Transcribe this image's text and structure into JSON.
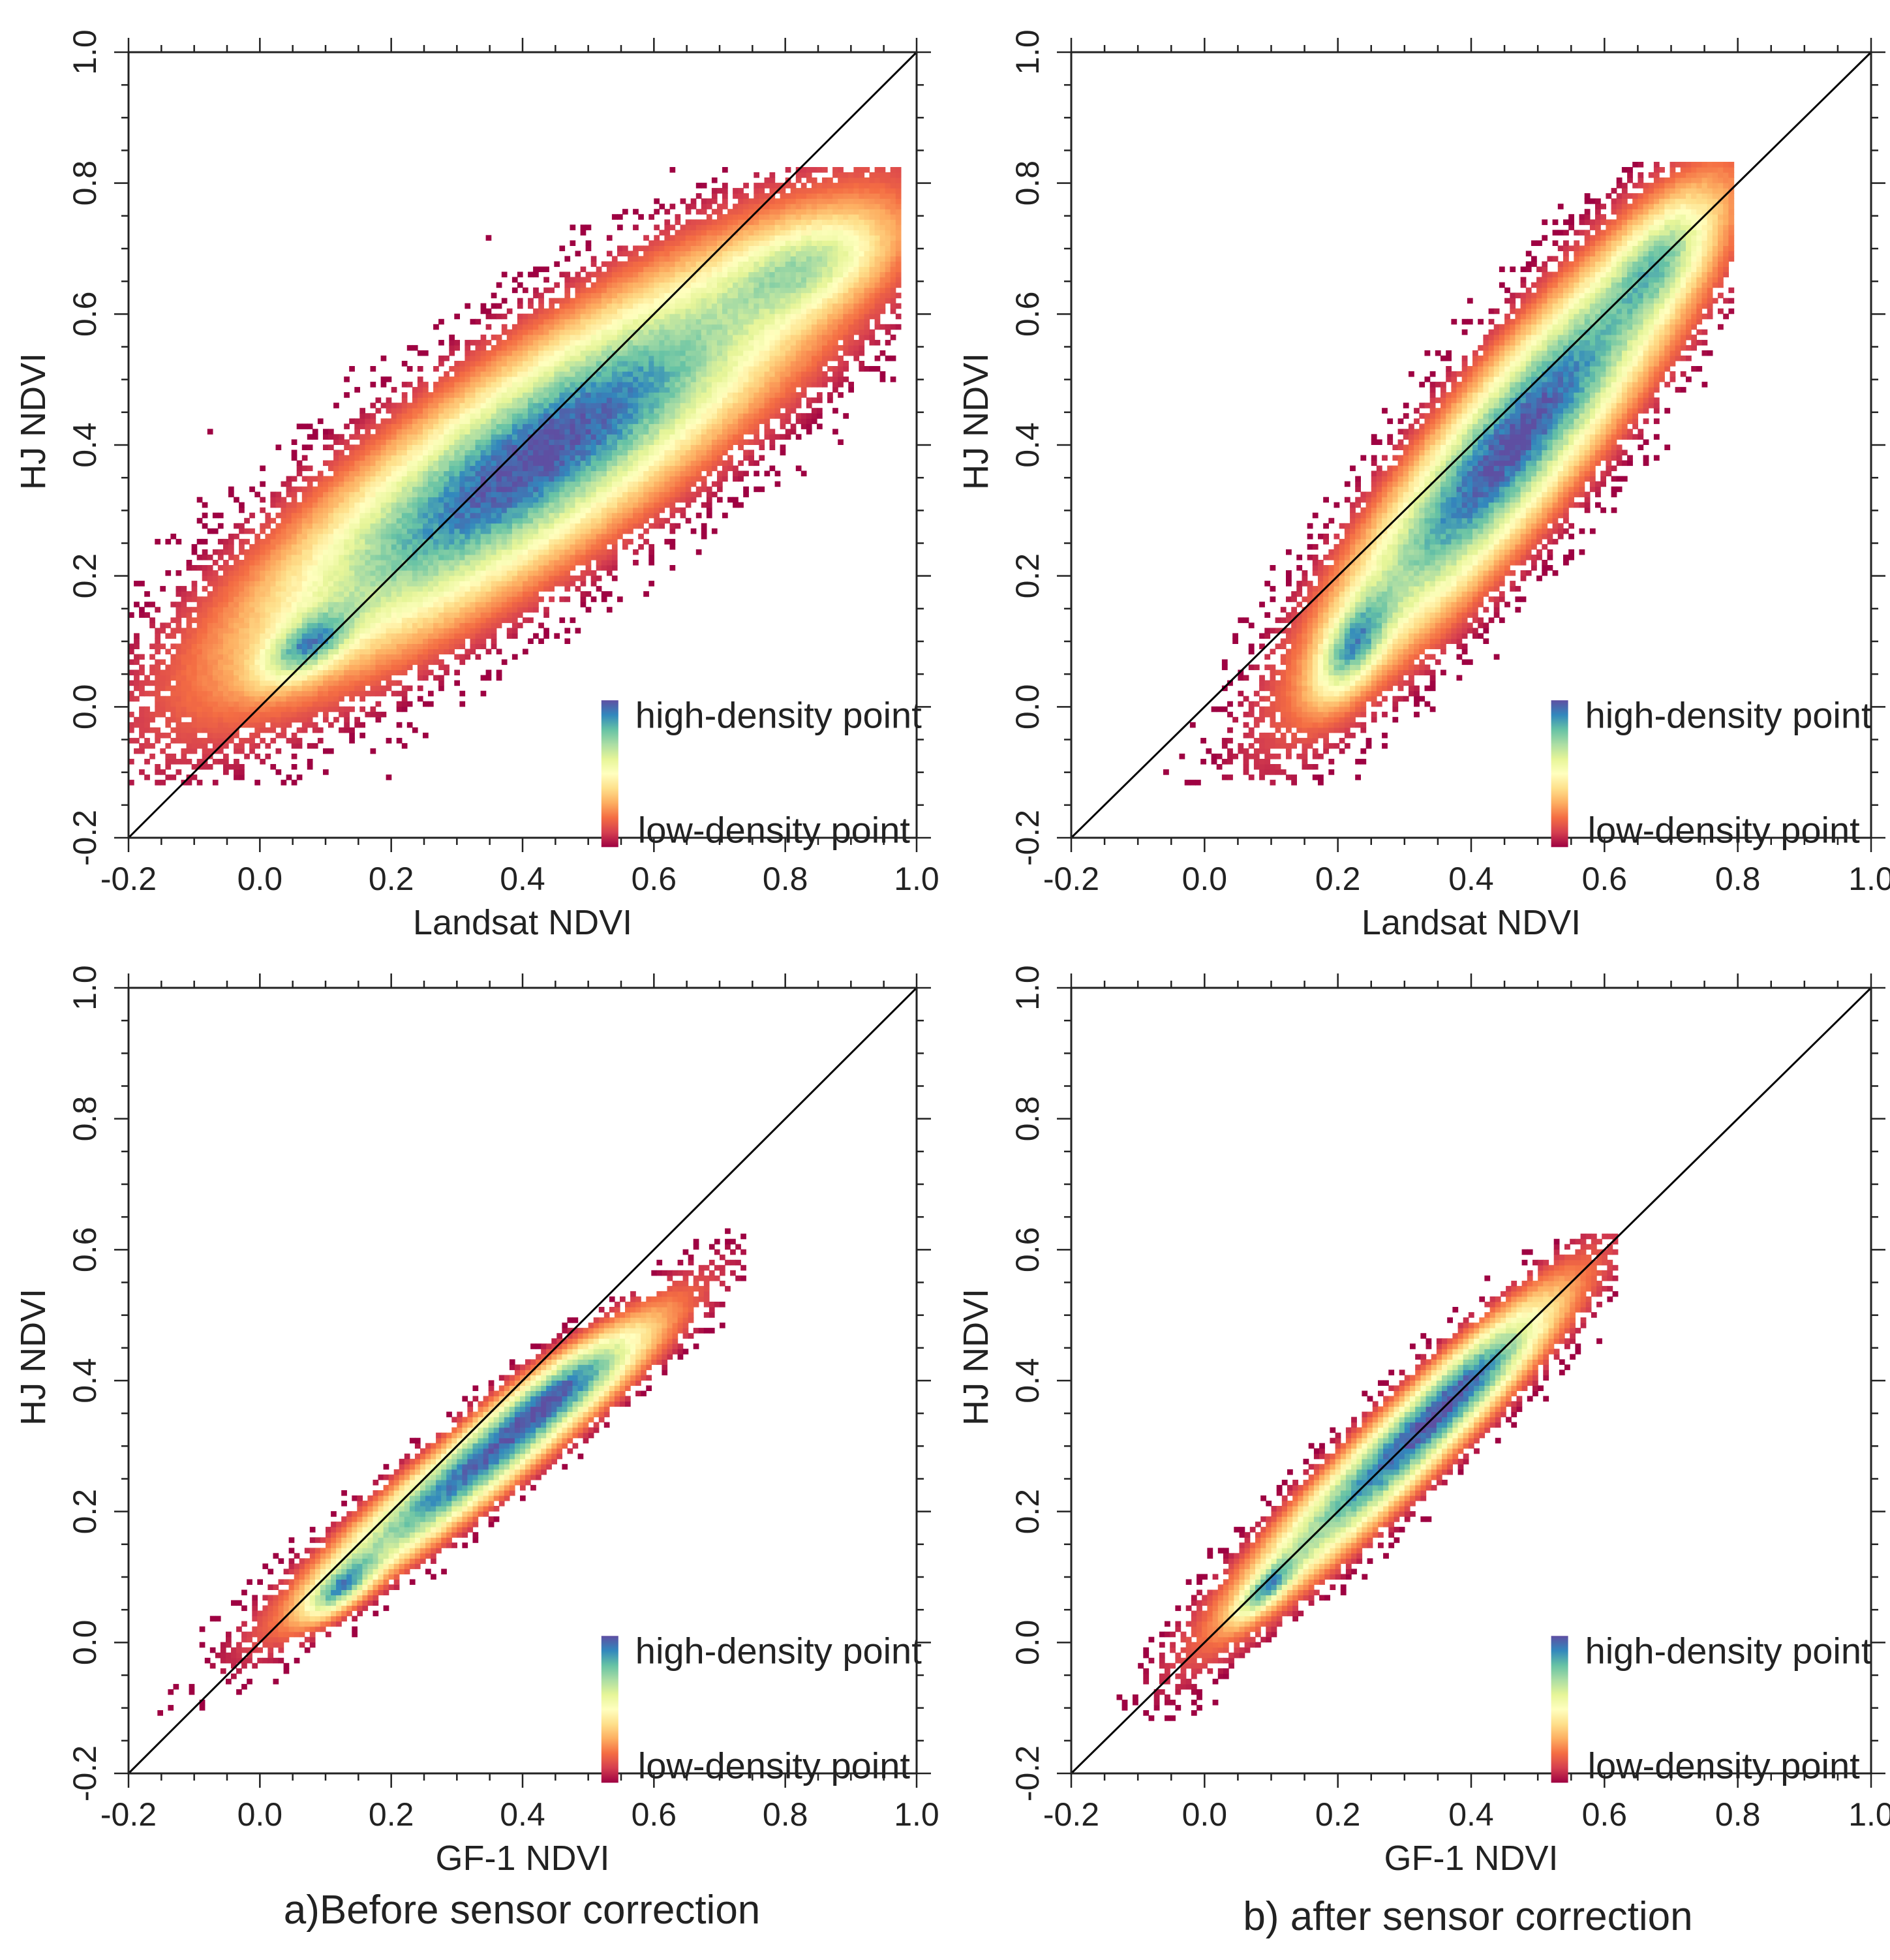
{
  "chart_data": [
    {
      "type": "heatmap",
      "subtype": "density scatter",
      "panel": "top-left",
      "xlabel": "Landsat NDVI",
      "ylabel": "HJ NDVI",
      "xlim": [
        -0.2,
        1.0
      ],
      "ylim": [
        -0.2,
        1.0
      ],
      "xticks": [
        "-0.2",
        "0.0",
        "0.2",
        "0.4",
        "0.6",
        "0.8",
        "1.0"
      ],
      "yticks": [
        "-0.2",
        "0.0",
        "0.2",
        "0.4",
        "0.6",
        "0.8",
        "1.0"
      ],
      "reference_line": "1:1",
      "legend": {
        "high": "high-density point",
        "low": "low-density point",
        "placement": "bottom-right"
      },
      "data_extent": {
        "x": [
          -0.2,
          0.97
        ],
        "y": [
          -0.12,
          0.82
        ]
      },
      "density_components": [
        {
          "mx": 0.42,
          "my": 0.38,
          "sx": 0.27,
          "sy": 0.2,
          "rho": 0.86,
          "w": 1.0
        },
        {
          "mx": 0.07,
          "my": 0.09,
          "sx": 0.045,
          "sy": 0.035,
          "rho": 0.6,
          "w": 0.55
        },
        {
          "mx": 0.83,
          "my": 0.67,
          "sx": 0.08,
          "sy": 0.05,
          "rho": 0.5,
          "w": 0.35
        }
      ]
    },
    {
      "type": "heatmap",
      "subtype": "density scatter",
      "panel": "top-right",
      "xlabel": "Landsat NDVI",
      "ylabel": "HJ NDVI",
      "xlim": [
        -0.2,
        1.0
      ],
      "ylim": [
        -0.2,
        1.0
      ],
      "xticks": [
        "-0.2",
        "0.0",
        "0.2",
        "0.4",
        "0.6",
        "0.8",
        "1.0"
      ],
      "yticks": [
        "-0.2",
        "0.0",
        "0.2",
        "0.4",
        "0.6",
        "0.8",
        "1.0"
      ],
      "reference_line": "1:1",
      "legend": {
        "high": "high-density point",
        "low": "low-density point",
        "placement": "bottom-right"
      },
      "data_extent": {
        "x": [
          -0.15,
          0.79
        ],
        "y": [
          -0.12,
          0.83
        ]
      },
      "density_components": [
        {
          "mx": 0.46,
          "my": 0.4,
          "sx": 0.17,
          "sy": 0.21,
          "rho": 0.9,
          "w": 1.0
        },
        {
          "mx": 0.22,
          "my": 0.09,
          "sx": 0.035,
          "sy": 0.05,
          "rho": 0.6,
          "w": 0.55
        },
        {
          "mx": 0.68,
          "my": 0.68,
          "sx": 0.05,
          "sy": 0.06,
          "rho": 0.6,
          "w": 0.35
        }
      ]
    },
    {
      "type": "heatmap",
      "subtype": "density scatter",
      "panel": "bottom-left",
      "xlabel": "GF-1 NDVI",
      "ylabel": "HJ NDVI",
      "xlim": [
        -0.2,
        1.0
      ],
      "ylim": [
        -0.2,
        1.0
      ],
      "xticks": [
        "-0.2",
        "0.0",
        "0.2",
        "0.4",
        "0.6",
        "0.8",
        "1.0"
      ],
      "yticks": [
        "-0.2",
        "0.0",
        "0.2",
        "0.4",
        "0.6",
        "0.8",
        "1.0"
      ],
      "reference_line": "1:1",
      "legend": {
        "high": "high-density point",
        "low": "low-density point",
        "placement": "bottom-right"
      },
      "data_extent": {
        "x": [
          -0.18,
          0.74
        ],
        "y": [
          -0.12,
          0.63
        ]
      },
      "density_components": [
        {
          "mx": 0.33,
          "my": 0.27,
          "sx": 0.16,
          "sy": 0.13,
          "rho": 0.95,
          "w": 1.0
        },
        {
          "mx": 0.12,
          "my": 0.08,
          "sx": 0.035,
          "sy": 0.03,
          "rho": 0.7,
          "w": 0.6
        },
        {
          "mx": 0.46,
          "my": 0.39,
          "sx": 0.07,
          "sy": 0.05,
          "rho": 0.8,
          "w": 0.35
        }
      ]
    },
    {
      "type": "heatmap",
      "subtype": "density scatter",
      "panel": "bottom-right",
      "xlabel": "GF-1 NDVI",
      "ylabel": "HJ NDVI",
      "xlim": [
        -0.2,
        1.0
      ],
      "ylim": [
        -0.2,
        1.0
      ],
      "xticks": [
        "-0.2",
        "0.0",
        "0.2",
        "0.4",
        "0.6",
        "0.8",
        "1.0"
      ],
      "yticks": [
        "-0.2",
        "0.0",
        "0.2",
        "0.4",
        "0.6",
        "0.8",
        "1.0"
      ],
      "reference_line": "1:1",
      "legend": {
        "high": "high-density point",
        "low": "low-density point",
        "placement": "bottom-right"
      },
      "data_extent": {
        "x": [
          -0.18,
          0.62
        ],
        "y": [
          -0.12,
          0.62
        ]
      },
      "density_components": [
        {
          "mx": 0.28,
          "my": 0.28,
          "sx": 0.15,
          "sy": 0.15,
          "rho": 0.95,
          "w": 1.0
        },
        {
          "mx": 0.09,
          "my": 0.08,
          "sx": 0.03,
          "sy": 0.03,
          "rho": 0.8,
          "w": 0.6
        },
        {
          "mx": 0.4,
          "my": 0.4,
          "sx": 0.07,
          "sy": 0.07,
          "rho": 0.85,
          "w": 0.35
        }
      ]
    }
  ],
  "captions": {
    "a": "a)Before sensor correction",
    "b": "b) after sensor correction"
  },
  "colors": {
    "colormap": [
      "#9e0142",
      "#d53e4f",
      "#f46d43",
      "#fdae61",
      "#fee08b",
      "#ffffbf",
      "#e6f598",
      "#abdda4",
      "#66c2a5",
      "#3288bd",
      "#5e4fa2"
    ],
    "axis": "#222222",
    "reference_line": "#000000"
  }
}
